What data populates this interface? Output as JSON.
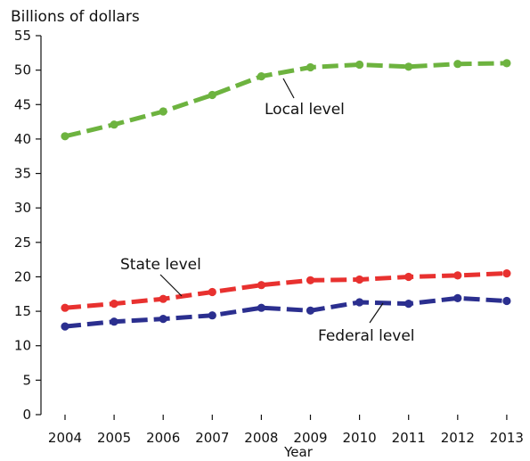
{
  "chart_data": {
    "type": "line",
    "title": "",
    "ylabel": "Billions of dollars",
    "xlabel": "Year",
    "x": [
      "2004",
      "2005",
      "2006",
      "2007",
      "2008",
      "2009",
      "2010",
      "2011",
      "2012",
      "2013"
    ],
    "ylim": [
      0,
      55
    ],
    "yticks": [
      0,
      5,
      10,
      15,
      20,
      25,
      30,
      35,
      40,
      45,
      50,
      55
    ],
    "grid": false,
    "legend": "none",
    "series": [
      {
        "name": "Local level",
        "color": "#6db33f",
        "values": [
          40.4,
          42.1,
          44.0,
          46.4,
          49.1,
          50.4,
          50.8,
          50.5,
          50.9,
          51.0
        ]
      },
      {
        "name": "State level",
        "color": "#e8312f",
        "values": [
          15.5,
          16.1,
          16.8,
          17.8,
          18.8,
          19.5,
          19.6,
          20.0,
          20.2,
          20.5
        ]
      },
      {
        "name": "Federal level",
        "color": "#2b2f8f",
        "values": [
          12.8,
          13.5,
          13.9,
          14.4,
          15.5,
          15.1,
          16.3,
          16.1,
          16.9,
          16.5
        ]
      }
    ]
  }
}
